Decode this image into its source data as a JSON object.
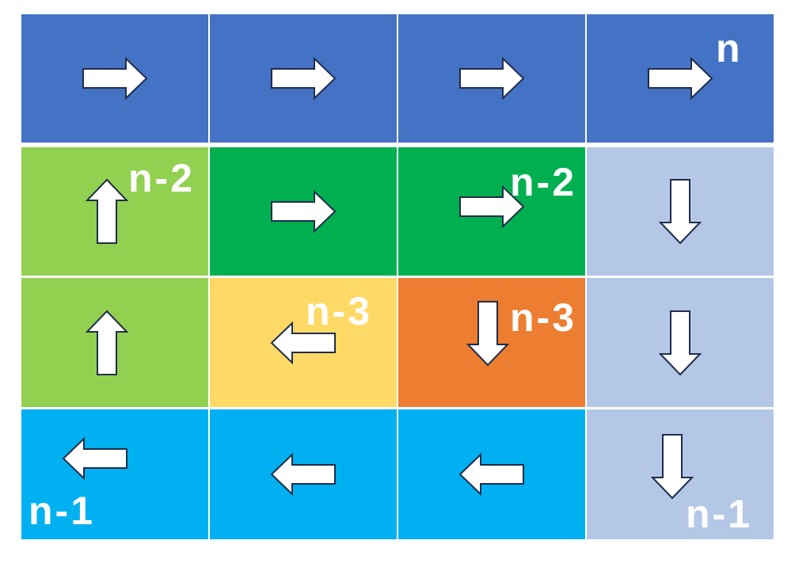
{
  "colors": {
    "top_row": "#4472C4",
    "left_column": "#92D050",
    "inner_top": "#00B050",
    "inner_bottom_left": "#FFD966",
    "inner_bottom_right": "#ED7D31",
    "right_column": "#B4C7E7",
    "bottom_row": "#00B0F0",
    "arrow_fill": "#FFFFFF",
    "arrow_stroke": "#1F2D4A",
    "label_text": "#FFFFFF"
  },
  "grid": {
    "rows": 4,
    "cols": 4,
    "cells": [
      {
        "row": 0,
        "col": 0,
        "color": "top_row",
        "arrow": "right"
      },
      {
        "row": 0,
        "col": 1,
        "color": "top_row",
        "arrow": "right"
      },
      {
        "row": 0,
        "col": 2,
        "color": "top_row",
        "arrow": "right"
      },
      {
        "row": 0,
        "col": 3,
        "color": "top_row",
        "arrow": "right"
      },
      {
        "row": 1,
        "col": 0,
        "color": "left_column",
        "arrow": "up"
      },
      {
        "row": 1,
        "col": 1,
        "color": "inner_top",
        "arrow": "right"
      },
      {
        "row": 1,
        "col": 2,
        "color": "inner_top",
        "arrow": "right"
      },
      {
        "row": 1,
        "col": 3,
        "color": "right_column",
        "arrow": "down"
      },
      {
        "row": 2,
        "col": 0,
        "color": "left_column",
        "arrow": "up"
      },
      {
        "row": 2,
        "col": 1,
        "color": "inner_bottom_left",
        "arrow": "left"
      },
      {
        "row": 2,
        "col": 2,
        "color": "inner_bottom_right",
        "arrow": "down"
      },
      {
        "row": 2,
        "col": 3,
        "color": "right_column",
        "arrow": "down"
      },
      {
        "row": 3,
        "col": 0,
        "color": "bottom_row",
        "arrow": "left"
      },
      {
        "row": 3,
        "col": 1,
        "color": "bottom_row",
        "arrow": "left"
      },
      {
        "row": 3,
        "col": 2,
        "color": "bottom_row",
        "arrow": "left"
      },
      {
        "row": 3,
        "col": 3,
        "color": "right_column",
        "arrow": "down"
      }
    ]
  },
  "labels": {
    "top_row": "n",
    "left_column": "n-2",
    "inner_top": "n-2",
    "inner_bottom_left": "n-3",
    "inner_bottom_right": "n-3",
    "right_column": "n-1",
    "bottom_row": "n-1"
  }
}
